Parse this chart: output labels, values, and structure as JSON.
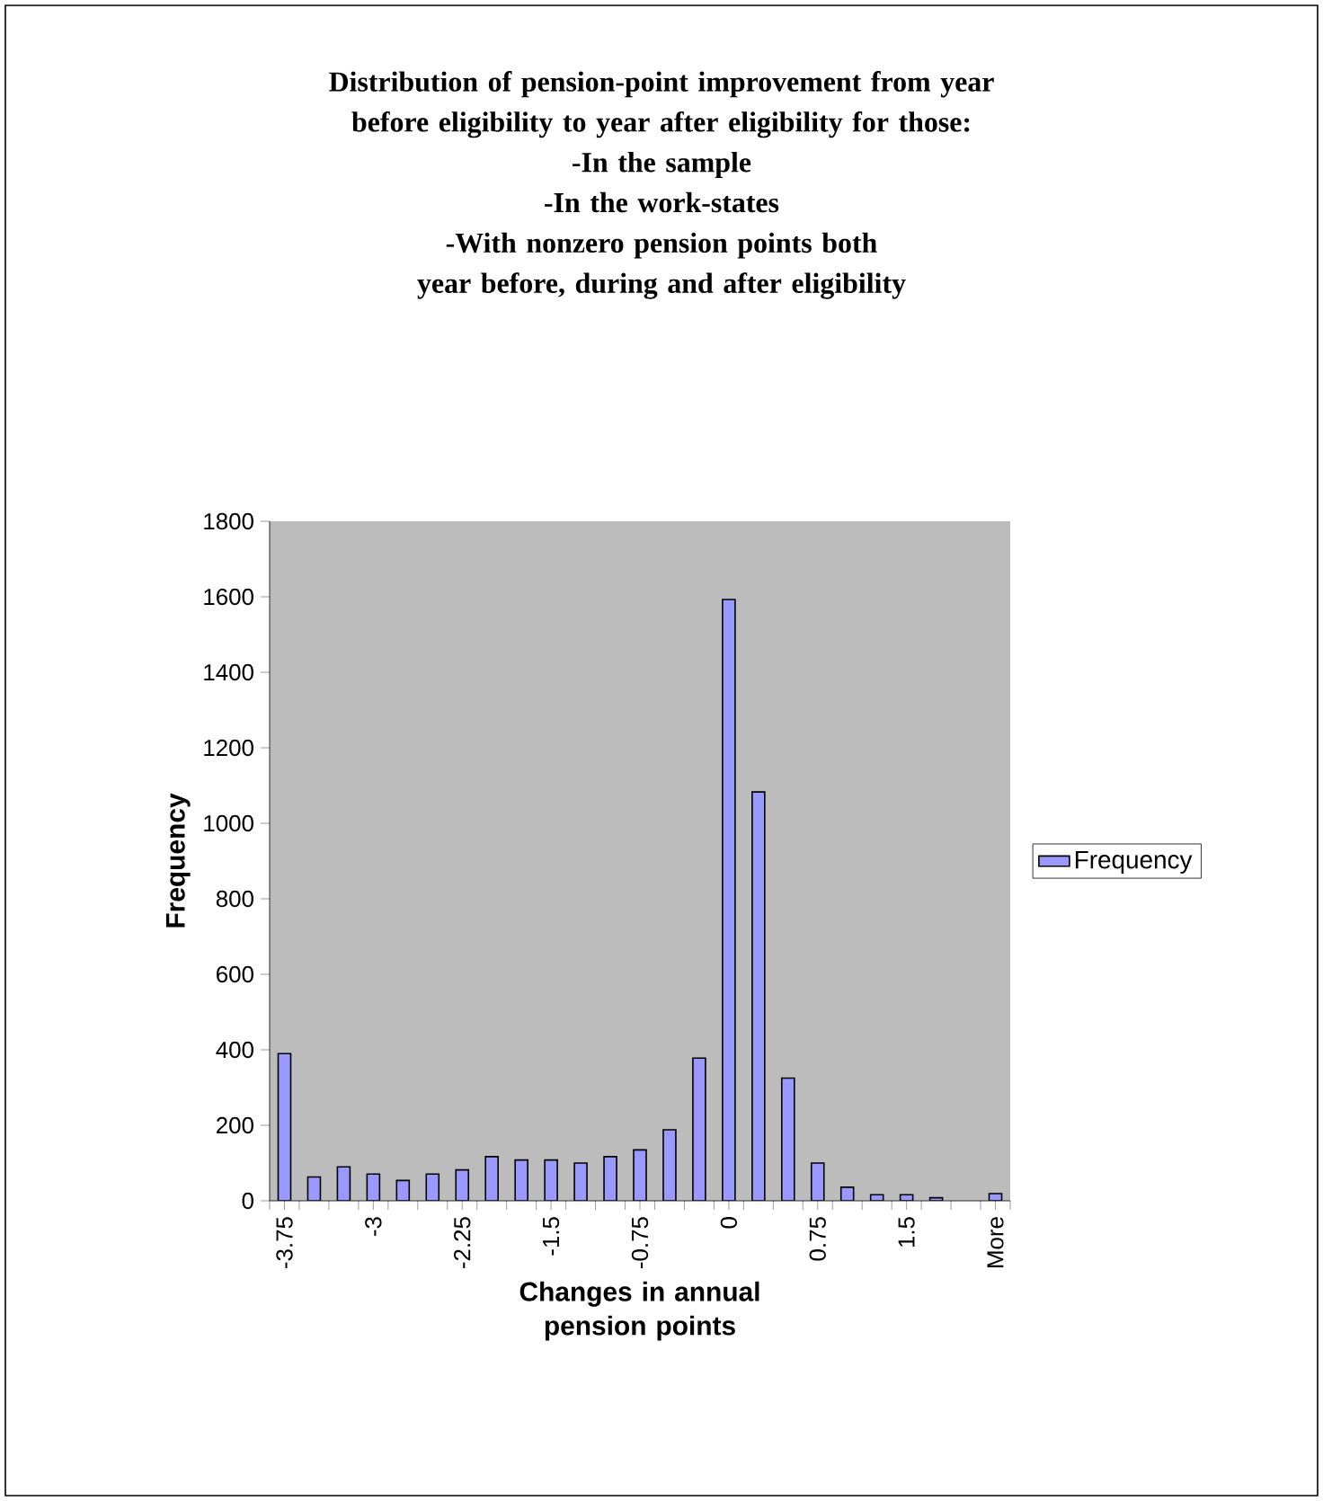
{
  "chart_data": {
    "type": "bar",
    "title": "Distribution of pension-point improvement from year before eligibility to year after eligibility for those:",
    "annotations": [
      "-In the sample",
      "-In the work-states",
      "-With nonzero pension points both year before, during and after eligibility"
    ],
    "xlabel": "Changes in annual pension points",
    "ylabel": "Frequency",
    "categories": [
      "-3.75",
      null,
      null,
      "-3",
      null,
      null,
      "-2.25",
      null,
      null,
      "-1.5",
      null,
      null,
      "-0.75",
      null,
      null,
      "0",
      null,
      null,
      "0.75",
      null,
      null,
      "1.5",
      null,
      null,
      "More"
    ],
    "series": [
      {
        "name": "Frequency",
        "color": "#9999ff",
        "values": [
          390,
          63,
          90,
          71,
          54,
          71,
          82,
          117,
          108,
          108,
          100,
          117,
          135,
          188,
          378,
          1593,
          1083,
          325,
          100,
          36,
          16,
          16,
          8,
          0,
          19
        ]
      }
    ],
    "ylim": [
      0,
      1800
    ],
    "yticks": [
      0,
      200,
      400,
      600,
      800,
      1000,
      1200,
      1400,
      1600,
      1800
    ],
    "legend": "right"
  }
}
